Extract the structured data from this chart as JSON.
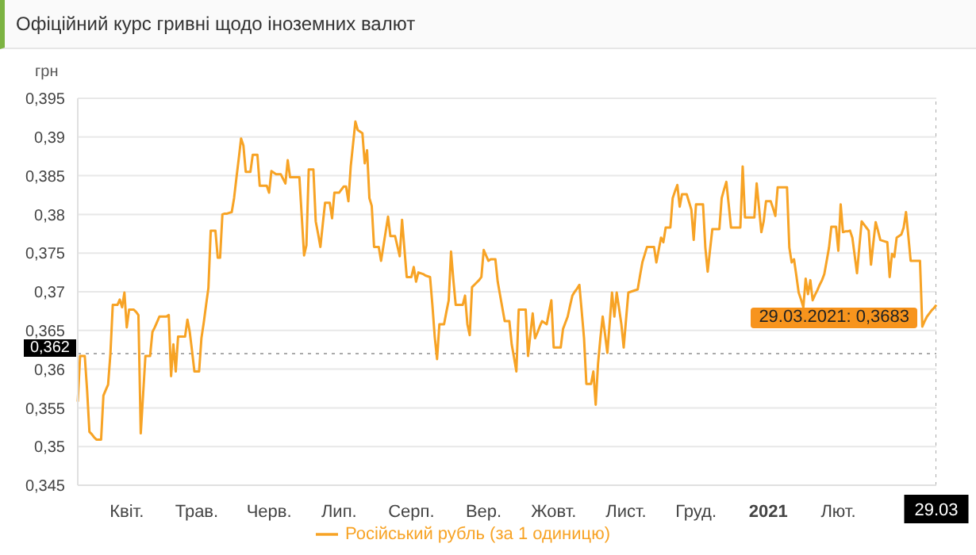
{
  "chart_data": {
    "type": "line",
    "title": "Офіційний курс гривні щодо іноземних валют",
    "ylabel": "грн",
    "categories": [
      null,
      null,
      null,
      null,
      null,
      null,
      null,
      null,
      null,
      null,
      null,
      null,
      null,
      null,
      null,
      null,
      null,
      null,
      null,
      null,
      null,
      "Квіт.",
      null,
      null,
      null,
      null,
      null,
      null,
      null,
      null,
      null,
      null,
      null,
      null,
      null,
      null,
      null,
      null,
      null,
      null,
      null,
      null,
      null,
      null,
      null,
      null,
      null,
      null,
      null,
      null,
      null,
      "Трав.",
      null,
      null,
      null,
      null,
      null,
      null,
      null,
      null,
      null,
      null,
      null,
      null,
      null,
      null,
      null,
      null,
      null,
      null,
      null,
      null,
      null,
      null,
      null,
      null,
      null,
      null,
      null,
      null,
      null,
      null,
      "Черв.",
      null,
      null,
      null,
      null,
      null,
      null,
      null,
      null,
      null,
      null,
      null,
      null,
      null,
      null,
      null,
      null,
      null,
      null,
      null,
      null,
      null,
      null,
      null,
      null,
      null,
      null,
      null,
      null,
      null,
      "Лип.",
      null,
      null,
      null,
      null,
      null,
      null,
      null,
      null,
      null,
      null,
      null,
      null,
      null,
      null,
      null,
      null,
      null,
      null,
      null,
      null,
      null,
      null,
      null,
      null,
      null,
      null,
      null,
      null,
      null,
      null,
      "Серп.",
      null,
      null,
      null,
      null,
      null,
      null,
      null,
      null,
      null,
      null,
      null,
      null,
      null,
      null,
      null,
      null,
      null,
      null,
      null,
      null,
      null,
      null,
      null,
      null,
      null,
      null,
      null,
      null,
      null,
      null,
      "Вер.",
      null,
      null,
      null,
      null,
      null,
      null,
      null,
      null,
      null,
      null,
      null,
      null,
      null,
      null,
      null,
      null,
      null,
      null,
      null,
      null,
      null,
      null,
      null,
      null,
      null,
      null,
      null,
      null,
      null,
      "Жовт.",
      null,
      null,
      null,
      null,
      null,
      null,
      null,
      null,
      null,
      null,
      null,
      null,
      null,
      null,
      null,
      null,
      null,
      null,
      null,
      null,
      null,
      null,
      null,
      null,
      null,
      null,
      null,
      null,
      null,
      null,
      "Лист.",
      null,
      null,
      null,
      null,
      null,
      null,
      null,
      null,
      null,
      null,
      null,
      null,
      null,
      null,
      null,
      null,
      null,
      null,
      null,
      null,
      null,
      null,
      null,
      null,
      null,
      null,
      null,
      null,
      null,
      "Груд.",
      null,
      null,
      null,
      null,
      null,
      null,
      null,
      null,
      null,
      null,
      null,
      null,
      null,
      null,
      null,
      null,
      null,
      null,
      null,
      null,
      null,
      null,
      null,
      null,
      null,
      null,
      null,
      null,
      null,
      null,
      "2021",
      null,
      null,
      null,
      null,
      null,
      null,
      null,
      null,
      null,
      null,
      null,
      null,
      null,
      null,
      null,
      null,
      null,
      null,
      null,
      null,
      null,
      null,
      null,
      null,
      null,
      null,
      null,
      null,
      null,
      "Лют.",
      null,
      null,
      null,
      null,
      null,
      null,
      null,
      null,
      null,
      null,
      null,
      null,
      null,
      null,
      null,
      null,
      null,
      null,
      null,
      null,
      null,
      null,
      null,
      null,
      null,
      null,
      null,
      null,
      null,
      null,
      null,
      null,
      null,
      null,
      null,
      null,
      null,
      null,
      null,
      null,
      null,
      "29.03"
    ],
    "series": [
      {
        "name": "Російський рубль (за 1 одиницю)",
        "color": "#f7a325",
        "values": [
          0.3558,
          0.3617,
          0.3617,
          0.3617,
          0.3573,
          0.3519,
          0.3516,
          0.3512,
          0.3509,
          0.3509,
          0.3509,
          0.3566,
          0.3573,
          0.358,
          0.362,
          0.3683,
          0.3683,
          0.3683,
          0.369,
          0.368,
          0.3699,
          0.3654,
          0.3677,
          0.3677,
          0.3677,
          0.3674,
          0.367,
          0.3517,
          0.3567,
          0.3617,
          0.3617,
          0.3617,
          0.3648,
          0.3654,
          0.3661,
          0.3668,
          0.3668,
          0.3668,
          0.3668,
          0.367,
          0.3591,
          0.3632,
          0.3597,
          0.3642,
          0.3642,
          0.3642,
          0.3642,
          0.3664,
          0.3648,
          0.3623,
          0.3597,
          0.3597,
          0.3597,
          0.364,
          0.366,
          0.3683,
          0.3705,
          0.3779,
          0.3779,
          0.3779,
          0.3744,
          0.3744,
          0.38,
          0.3801,
          0.3801,
          0.3802,
          0.3803,
          0.3821,
          0.3847,
          0.3872,
          0.3898,
          0.3889,
          0.3855,
          0.3855,
          0.3855,
          0.3877,
          0.3877,
          0.3877,
          0.3837,
          0.3837,
          0.3837,
          0.3837,
          0.3828,
          0.3856,
          0.3854,
          0.3852,
          0.3852,
          0.3852,
          0.3846,
          0.384,
          0.387,
          0.3848,
          0.3848,
          0.3848,
          0.3848,
          0.3848,
          0.3798,
          0.3747,
          0.376,
          0.3858,
          0.3858,
          0.3858,
          0.3791,
          0.3775,
          0.3758,
          0.3787,
          0.3815,
          0.3815,
          0.3815,
          0.3795,
          0.3828,
          0.3828,
          0.3828,
          0.3832,
          0.3836,
          0.3836,
          0.3817,
          0.3862,
          0.3891,
          0.392,
          0.3909,
          0.3907,
          0.3905,
          0.3866,
          0.3883,
          0.3821,
          0.3811,
          0.3758,
          0.3758,
          0.3758,
          0.374,
          0.3759,
          0.3778,
          0.3797,
          0.3772,
          0.3772,
          0.3772,
          0.3759,
          0.3746,
          0.3793,
          0.3756,
          0.3719,
          0.3719,
          0.3719,
          0.3732,
          0.3713,
          0.3725,
          0.3724,
          0.3723,
          0.3721,
          0.372,
          0.3719,
          0.3683,
          0.3642,
          0.3613,
          0.3658,
          0.3658,
          0.3658,
          0.3674,
          0.3689,
          0.3752,
          0.3715,
          0.3683,
          0.3683,
          0.3683,
          0.3683,
          0.3695,
          0.3658,
          0.3644,
          0.3706,
          0.3709,
          0.3712,
          0.3715,
          0.3719,
          0.3754,
          0.3747,
          0.374,
          0.3742,
          0.3742,
          0.3742,
          0.3713,
          0.3696,
          0.3679,
          0.3662,
          0.3662,
          0.3662,
          0.3632,
          0.3615,
          0.3597,
          0.3677,
          0.3677,
          0.3677,
          0.3677,
          0.3617,
          0.3645,
          0.3672,
          0.364,
          0.3647,
          0.3655,
          0.3662,
          0.366,
          0.3658,
          0.3674,
          0.3689,
          0.3628,
          0.3628,
          0.3628,
          0.3628,
          0.3652,
          0.366,
          0.3668,
          0.3682,
          0.3695,
          0.37,
          0.3704,
          0.3709,
          0.3675,
          0.364,
          0.3581,
          0.3581,
          0.3581,
          0.3597,
          0.3554,
          0.3607,
          0.364,
          0.3668,
          0.3645,
          0.3621,
          0.366,
          0.3699,
          0.3668,
          0.3699,
          0.3679,
          0.3658,
          0.3628,
          0.3664,
          0.3699,
          0.37,
          0.3701,
          0.3702,
          0.3703,
          0.3721,
          0.3738,
          0.3748,
          0.3758,
          0.3758,
          0.3758,
          0.3758,
          0.3738,
          0.3754,
          0.377,
          0.3764,
          0.3783,
          0.3783,
          0.3783,
          0.3821,
          0.383,
          0.3838,
          0.381,
          0.3826,
          0.3826,
          0.3826,
          0.3816,
          0.3806,
          0.3767,
          0.3813,
          0.3813,
          0.3813,
          0.3813,
          0.3757,
          0.3726,
          0.3754,
          0.3781,
          0.3781,
          0.3781,
          0.3781,
          0.3821,
          0.3832,
          0.3842,
          0.3813,
          0.3783,
          0.3783,
          0.3783,
          0.3783,
          0.3783,
          0.3862,
          0.3796,
          0.3796,
          0.3796,
          0.3796,
          0.3796,
          0.384,
          0.3809,
          0.3777,
          0.3791,
          0.3817,
          0.3817,
          0.3817,
          0.3808,
          0.3798,
          0.3835,
          0.3835,
          0.3835,
          0.3835,
          0.3835,
          0.3757,
          0.3738,
          0.3742,
          0.3721,
          0.3699,
          0.369,
          0.368,
          0.3717,
          0.3697,
          0.3715,
          0.3689,
          0.3696,
          0.3702,
          0.3709,
          0.3715,
          0.3723,
          0.374,
          0.3757,
          0.3784,
          0.3784,
          0.3784,
          0.3753,
          0.3813,
          0.3777,
          0.3778,
          0.3778,
          0.3779,
          0.377,
          0.3747,
          0.3724,
          0.3758,
          0.3791,
          0.3787,
          0.3783,
          0.3779,
          0.3735,
          0.3763,
          0.379,
          0.3779,
          0.3767,
          0.3766,
          0.3765,
          0.3764,
          0.3719,
          0.3749,
          0.3745,
          0.377,
          0.3772,
          0.3774,
          0.3783,
          0.3803,
          0.3772,
          0.374,
          0.374,
          0.374,
          0.374,
          0.374,
          0.3655,
          0.3662,
          0.3668,
          0.3672,
          0.3676,
          0.3679,
          0.3683
        ]
      }
    ],
    "ylim": [
      0.345,
      0.395
    ],
    "yticks": [
      {
        "value": 0.345,
        "label": "0,345"
      },
      {
        "value": 0.35,
        "label": "0,35"
      },
      {
        "value": 0.355,
        "label": "0,355"
      },
      {
        "value": 0.36,
        "label": "0,36"
      },
      {
        "value": 0.365,
        "label": "0,365"
      },
      {
        "value": 0.37,
        "label": "0,37"
      },
      {
        "value": 0.375,
        "label": "0,375"
      },
      {
        "value": 0.38,
        "label": "0,38"
      },
      {
        "value": 0.385,
        "label": "0,385"
      },
      {
        "value": 0.39,
        "label": "0,39"
      },
      {
        "value": 0.395,
        "label": "0,395"
      }
    ],
    "ref_lines": [
      {
        "axis": "y",
        "value": 0.362,
        "label": "0,362",
        "line_style": "dotted"
      },
      {
        "axis": "x",
        "value": "29.03",
        "line_style": "dotted"
      }
    ],
    "annotations": [
      {
        "text": "29.03.2021: 0,3683",
        "x": "29.03",
        "y": 0.3683
      }
    ],
    "grid": "y",
    "legend": "bottom",
    "marker": "none",
    "line_style": "solid"
  }
}
